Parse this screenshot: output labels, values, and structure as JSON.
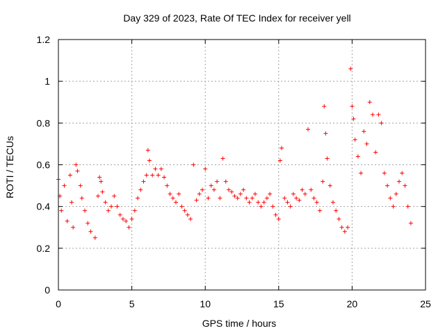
{
  "chart_data": {
    "type": "scatter",
    "title": "Day 329 of 2023, Rate Of TEC Index for receiver yell",
    "xlabel": "GPS time / hours",
    "ylabel": "ROTI / TECUs",
    "xlim": [
      0,
      25
    ],
    "ylim": [
      0,
      1.2
    ],
    "xticks": [
      0,
      5,
      10,
      15,
      20,
      25
    ],
    "yticks": [
      0,
      0.2,
      0.4,
      0.6,
      0.8,
      1,
      1.2
    ],
    "xtick_labels": [
      "0",
      "5",
      "10",
      "15",
      "20",
      "25"
    ],
    "ytick_labels": [
      "0",
      "0.2",
      "0.4",
      "0.6",
      "0.8",
      "1",
      "1.2"
    ],
    "grid": true,
    "marker": "plus",
    "color": "#ff0000",
    "series": [
      {
        "points": [
          [
            0.0,
            0.53
          ],
          [
            0.1,
            0.45
          ],
          [
            0.2,
            0.38
          ],
          [
            0.4,
            0.5
          ],
          [
            0.6,
            0.33
          ],
          [
            0.8,
            0.55
          ],
          [
            0.9,
            0.42
          ],
          [
            1.0,
            0.3
          ],
          [
            1.2,
            0.6
          ],
          [
            1.3,
            0.57
          ],
          [
            1.5,
            0.5
          ],
          [
            1.6,
            0.44
          ],
          [
            1.8,
            0.38
          ],
          [
            2.0,
            0.32
          ],
          [
            2.2,
            0.28
          ],
          [
            2.5,
            0.25
          ],
          [
            2.7,
            0.45
          ],
          [
            2.8,
            0.54
          ],
          [
            2.9,
            0.52
          ],
          [
            3.0,
            0.47
          ],
          [
            3.2,
            0.42
          ],
          [
            3.4,
            0.38
          ],
          [
            3.6,
            0.4
          ],
          [
            3.8,
            0.45
          ],
          [
            4.0,
            0.4
          ],
          [
            4.2,
            0.36
          ],
          [
            4.4,
            0.34
          ],
          [
            4.6,
            0.33
          ],
          [
            4.8,
            0.3
          ],
          [
            5.0,
            0.34
          ],
          [
            5.2,
            0.38
          ],
          [
            5.4,
            0.44
          ],
          [
            5.6,
            0.48
          ],
          [
            5.8,
            0.52
          ],
          [
            6.0,
            0.55
          ],
          [
            6.1,
            0.67
          ],
          [
            6.2,
            0.62
          ],
          [
            6.4,
            0.55
          ],
          [
            6.6,
            0.58
          ],
          [
            6.8,
            0.55
          ],
          [
            7.0,
            0.58
          ],
          [
            7.2,
            0.54
          ],
          [
            7.4,
            0.5
          ],
          [
            7.6,
            0.46
          ],
          [
            7.8,
            0.44
          ],
          [
            8.0,
            0.42
          ],
          [
            8.2,
            0.46
          ],
          [
            8.4,
            0.4
          ],
          [
            8.6,
            0.38
          ],
          [
            8.8,
            0.36
          ],
          [
            9.0,
            0.34
          ],
          [
            9.2,
            0.6
          ],
          [
            9.4,
            0.43
          ],
          [
            9.6,
            0.46
          ],
          [
            9.8,
            0.48
          ],
          [
            10.0,
            0.58
          ],
          [
            10.2,
            0.44
          ],
          [
            10.4,
            0.5
          ],
          [
            10.6,
            0.48
          ],
          [
            10.8,
            0.52
          ],
          [
            11.0,
            0.44
          ],
          [
            11.2,
            0.63
          ],
          [
            11.4,
            0.52
          ],
          [
            11.6,
            0.48
          ],
          [
            11.8,
            0.47
          ],
          [
            12.0,
            0.45
          ],
          [
            12.2,
            0.44
          ],
          [
            12.4,
            0.46
          ],
          [
            12.6,
            0.48
          ],
          [
            12.8,
            0.44
          ],
          [
            13.0,
            0.42
          ],
          [
            13.2,
            0.44
          ],
          [
            13.4,
            0.46
          ],
          [
            13.6,
            0.42
          ],
          [
            13.8,
            0.4
          ],
          [
            14.0,
            0.42
          ],
          [
            14.2,
            0.44
          ],
          [
            14.4,
            0.46
          ],
          [
            14.6,
            0.4
          ],
          [
            14.8,
            0.36
          ],
          [
            15.0,
            0.34
          ],
          [
            15.1,
            0.62
          ],
          [
            15.2,
            0.68
          ],
          [
            15.4,
            0.44
          ],
          [
            15.6,
            0.42
          ],
          [
            15.8,
            0.4
          ],
          [
            16.0,
            0.46
          ],
          [
            16.2,
            0.44
          ],
          [
            16.4,
            0.43
          ],
          [
            16.6,
            0.48
          ],
          [
            16.8,
            0.46
          ],
          [
            17.0,
            0.77
          ],
          [
            17.2,
            0.48
          ],
          [
            17.4,
            0.44
          ],
          [
            17.6,
            0.42
          ],
          [
            17.8,
            0.38
          ],
          [
            18.0,
            0.52
          ],
          [
            18.1,
            0.88
          ],
          [
            18.2,
            0.75
          ],
          [
            18.3,
            0.63
          ],
          [
            18.5,
            0.5
          ],
          [
            18.7,
            0.42
          ],
          [
            18.9,
            0.38
          ],
          [
            19.1,
            0.34
          ],
          [
            19.3,
            0.3
          ],
          [
            19.5,
            0.28
          ],
          [
            19.7,
            0.3
          ],
          [
            19.9,
            1.06
          ],
          [
            20.0,
            0.88
          ],
          [
            20.1,
            0.82
          ],
          [
            20.2,
            0.72
          ],
          [
            20.4,
            0.64
          ],
          [
            20.6,
            0.56
          ],
          [
            20.8,
            0.76
          ],
          [
            21.0,
            0.7
          ],
          [
            21.2,
            0.9
          ],
          [
            21.4,
            0.84
          ],
          [
            21.6,
            0.66
          ],
          [
            21.8,
            0.84
          ],
          [
            22.0,
            0.8
          ],
          [
            22.2,
            0.56
          ],
          [
            22.4,
            0.5
          ],
          [
            22.6,
            0.44
          ],
          [
            22.8,
            0.4
          ],
          [
            23.0,
            0.46
          ],
          [
            23.2,
            0.52
          ],
          [
            23.4,
            0.56
          ],
          [
            23.6,
            0.5
          ],
          [
            23.8,
            0.4
          ],
          [
            24.0,
            0.32
          ]
        ]
      }
    ]
  }
}
